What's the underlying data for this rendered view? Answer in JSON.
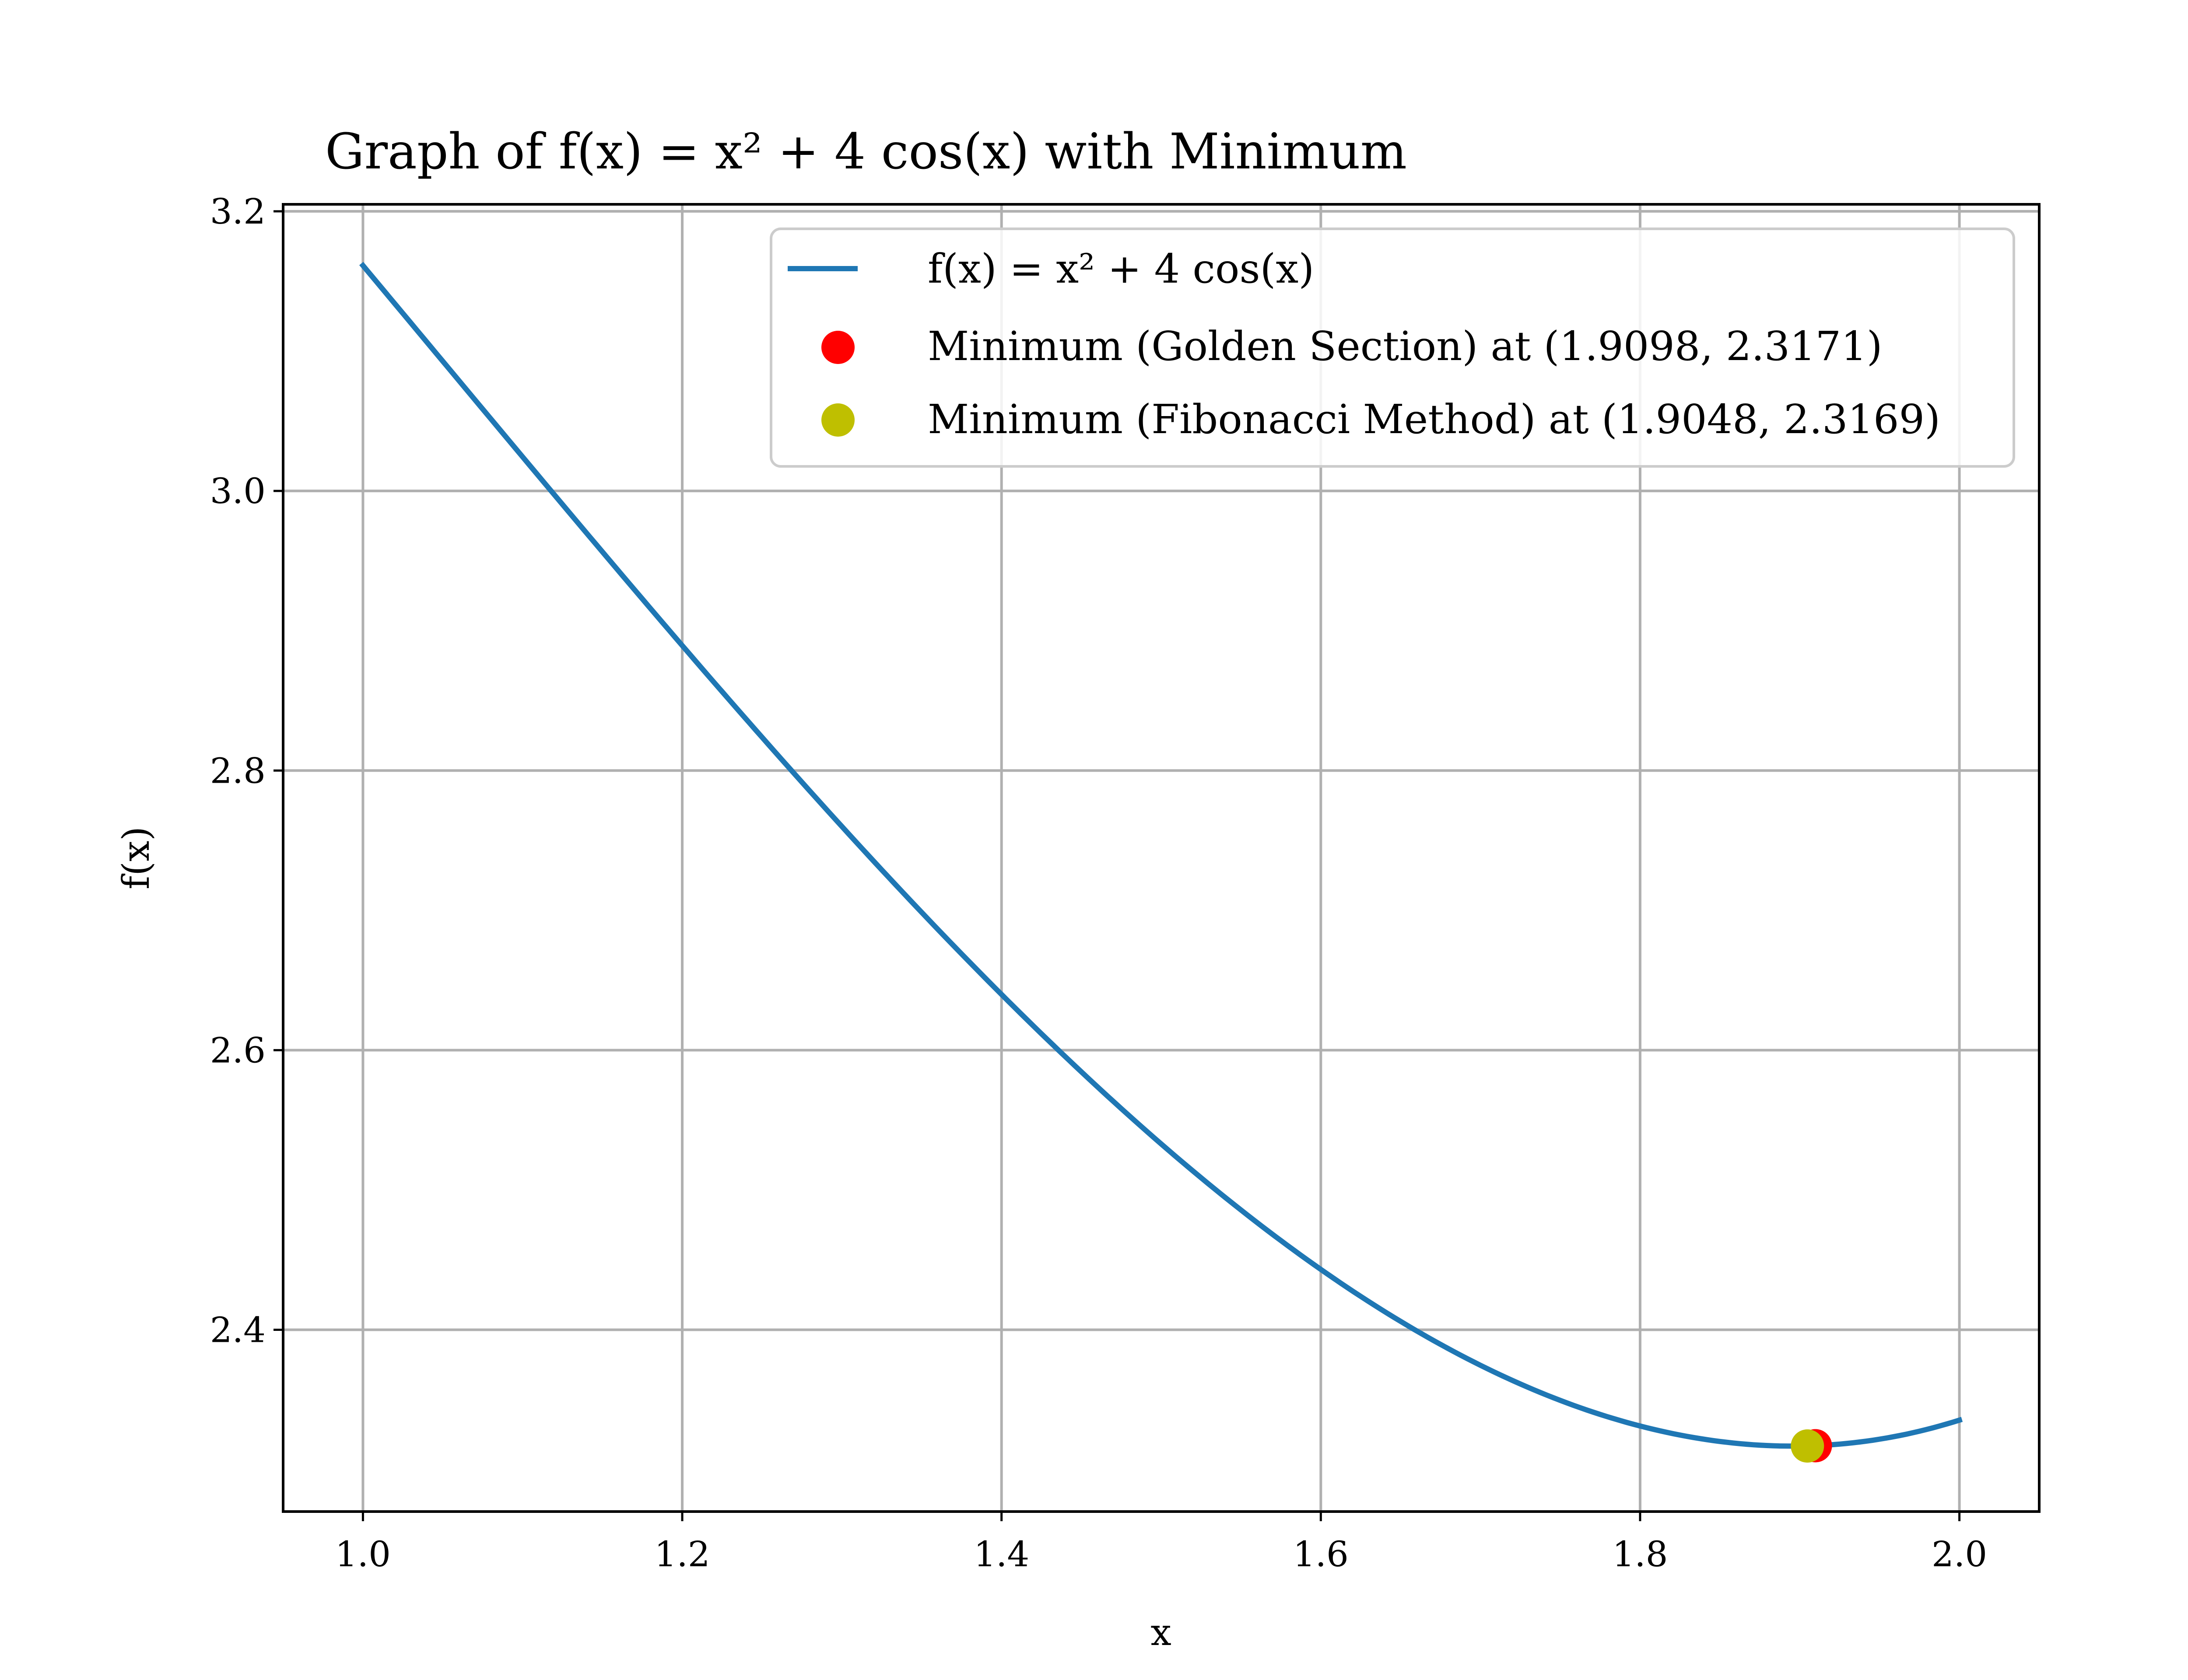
{
  "chart_data": {
    "type": "line",
    "title": "Graph of f(x) = x² + 4 cos(x) with Minimum",
    "xlabel": "x",
    "ylabel": "f(x)",
    "xlim": [
      0.95,
      2.05
    ],
    "ylim": [
      2.27,
      3.205
    ],
    "x_ticks": [
      1.0,
      1.2,
      1.4,
      1.6,
      1.8,
      2.0
    ],
    "x_tick_labels": [
      "1.0",
      "1.2",
      "1.4",
      "1.6",
      "1.8",
      "2.0"
    ],
    "y_ticks": [
      2.4,
      2.6,
      2.8,
      3.0,
      3.2
    ],
    "y_tick_labels": [
      "2.4",
      "2.6",
      "2.8",
      "3.0",
      "3.2"
    ],
    "grid": true,
    "legend_position": "top-right",
    "series": [
      {
        "name": "f(x) = x² + 4 cos(x)",
        "color": "#1f77b4",
        "x": [
          1.0,
          1.05,
          1.1,
          1.15,
          1.2,
          1.25,
          1.3,
          1.35,
          1.4,
          1.45,
          1.5,
          1.55,
          1.6,
          1.65,
          1.7,
          1.75,
          1.8,
          1.85,
          1.9,
          1.95,
          2.0
        ],
        "y": [
          3.1612,
          3.0874,
          3.0144,
          2.9434,
          2.8894,
          2.8271,
          2.765,
          2.7027,
          2.6395,
          2.5782,
          2.517,
          2.4609,
          2.4064,
          2.409,
          2.3632,
          2.3425,
          2.3271,
          2.318,
          2.3171,
          2.3186,
          2.3354
        ]
      },
      {
        "name": "Minimum (Golden Section) at (1.9098, 2.3171)",
        "type": "scatter",
        "color": "#ff0000",
        "x": [
          1.9098
        ],
        "y": [
          2.3171
        ]
      },
      {
        "name": "Minimum (Fibonacci Method) at (1.9048, 2.3169)",
        "type": "scatter",
        "color": "#bfbf00",
        "x": [
          1.9048
        ],
        "y": [
          2.3169
        ]
      }
    ]
  }
}
